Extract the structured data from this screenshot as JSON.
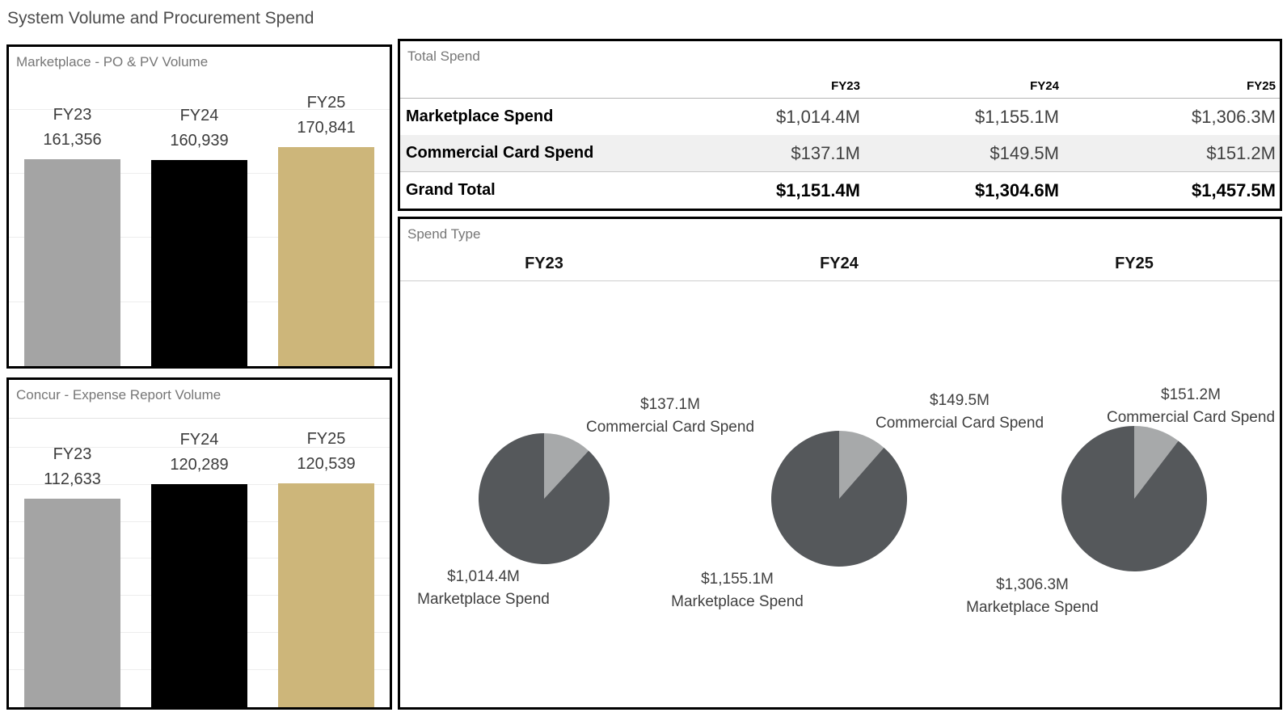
{
  "page_title": "System Volume and Procurement Spend",
  "colors": {
    "fy23_bar": "#a4a4a4",
    "fy24_bar": "#000000",
    "fy25_bar": "#cdb67a",
    "pie_marketplace": "#55585b",
    "pie_commercial_card": "#a7a9aa",
    "row_shaded": "#f0f0f0",
    "panel_title_text": "#767676",
    "panel_border": "#000000"
  },
  "marketplace_volume": {
    "title": "Marketplace - PO & PV Volume",
    "chart": {
      "type": "bar",
      "categories": [
        "FY23",
        "FY24",
        "FY25"
      ],
      "values": [
        161356,
        160939,
        170841
      ],
      "value_labels": [
        "161,356",
        "160,939",
        "170,841"
      ]
    }
  },
  "concur_volume": {
    "title": "Concur - Expense Report Volume",
    "chart": {
      "type": "bar",
      "categories": [
        "FY23",
        "FY24",
        "FY25"
      ],
      "values": [
        112633,
        120289,
        120539
      ],
      "value_labels": [
        "112,633",
        "120,289",
        "120,539"
      ]
    }
  },
  "total_spend": {
    "title": "Total Spend",
    "columns": [
      "FY23",
      "FY24",
      "FY25"
    ],
    "rows": [
      {
        "label": "Marketplace Spend",
        "values": [
          "$1,014.4M",
          "$1,155.1M",
          "$1,306.3M"
        ]
      },
      {
        "label": "Commercial Card Spend",
        "values": [
          "$137.1M",
          "$149.5M",
          "$151.2M"
        ]
      },
      {
        "label": "Grand Total",
        "values": [
          "$1,151.4M",
          "$1,304.6M",
          "$1,457.5M"
        ]
      }
    ]
  },
  "spend_type": {
    "title": "Spend Type",
    "columns": [
      "FY23",
      "FY24",
      "FY25"
    ],
    "pies": [
      {
        "year": "FY23",
        "slices": [
          {
            "label": "Marketplace Spend",
            "value": 1014.4,
            "value_label": "$1,014.4M"
          },
          {
            "label": "Commercial Card Spend",
            "value": 137.1,
            "value_label": "$137.1M"
          }
        ]
      },
      {
        "year": "FY24",
        "slices": [
          {
            "label": "Marketplace Spend",
            "value": 1155.1,
            "value_label": "$1,155.1M"
          },
          {
            "label": "Commercial Card Spend",
            "value": 149.5,
            "value_label": "$149.5M"
          }
        ]
      },
      {
        "year": "FY25",
        "slices": [
          {
            "label": "Marketplace Spend",
            "value": 1306.3,
            "value_label": "$1,306.3M"
          },
          {
            "label": "Commercial Card Spend",
            "value": 151.2,
            "value_label": "$151.2M"
          }
        ]
      }
    ]
  },
  "chart_data": [
    {
      "type": "bar",
      "title": "Marketplace - PO & PV Volume",
      "categories": [
        "FY23",
        "FY24",
        "FY25"
      ],
      "values": [
        161356,
        160939,
        170841
      ],
      "data_labels": [
        "161,356",
        "160,939",
        "170,841"
      ],
      "bar_colors": [
        "#a4a4a4",
        "#000000",
        "#cdb67a"
      ],
      "xlabel": "",
      "ylabel": "",
      "ylim": [
        0,
        250000
      ],
      "grid": "faint horizontal gridlines every 50,000",
      "legend": "none"
    },
    {
      "type": "bar",
      "title": "Concur - Expense Report Volume",
      "categories": [
        "FY23",
        "FY24",
        "FY25"
      ],
      "values": [
        112633,
        120289,
        120539
      ],
      "data_labels": [
        "112,633",
        "120,289",
        "120,539"
      ],
      "bar_colors": [
        "#a4a4a4",
        "#000000",
        "#cdb67a"
      ],
      "xlabel": "",
      "ylabel": "",
      "ylim": [
        0,
        180000
      ],
      "grid": "faint horizontal gridlines every 20,000",
      "legend": "none"
    },
    {
      "type": "table",
      "title": "Total Spend",
      "columns": [
        "FY23",
        "FY24",
        "FY25"
      ],
      "rows": [
        [
          "Marketplace Spend",
          "$1,014.4M",
          "$1,155.1M",
          "$1,306.3M"
        ],
        [
          "Commercial Card Spend",
          "$137.1M",
          "$149.5M",
          "$151.2M"
        ],
        [
          "Grand Total",
          "$1,151.4M",
          "$1,304.6M",
          "$1,457.5M"
        ]
      ]
    },
    {
      "type": "pie",
      "title": "Spend Type",
      "small_multiples": [
        "FY23",
        "FY24",
        "FY25"
      ],
      "categories": [
        "Marketplace Spend",
        "Commercial Card Spend"
      ],
      "series": [
        {
          "name": "Marketplace Spend",
          "values": [
            1014.4,
            1155.1,
            1306.3
          ]
        },
        {
          "name": "Commercial Card Spend",
          "values": [
            137.1,
            149.5,
            151.2
          ]
        }
      ],
      "units": "$M",
      "colors": {
        "Marketplace Spend": "#55585b",
        "Commercial Card Spend": "#a7a9aa"
      },
      "layout": "three pies left-to-right, sized by total; small slice starts at 12 o'clock clockwise; labels outside"
    }
  ]
}
